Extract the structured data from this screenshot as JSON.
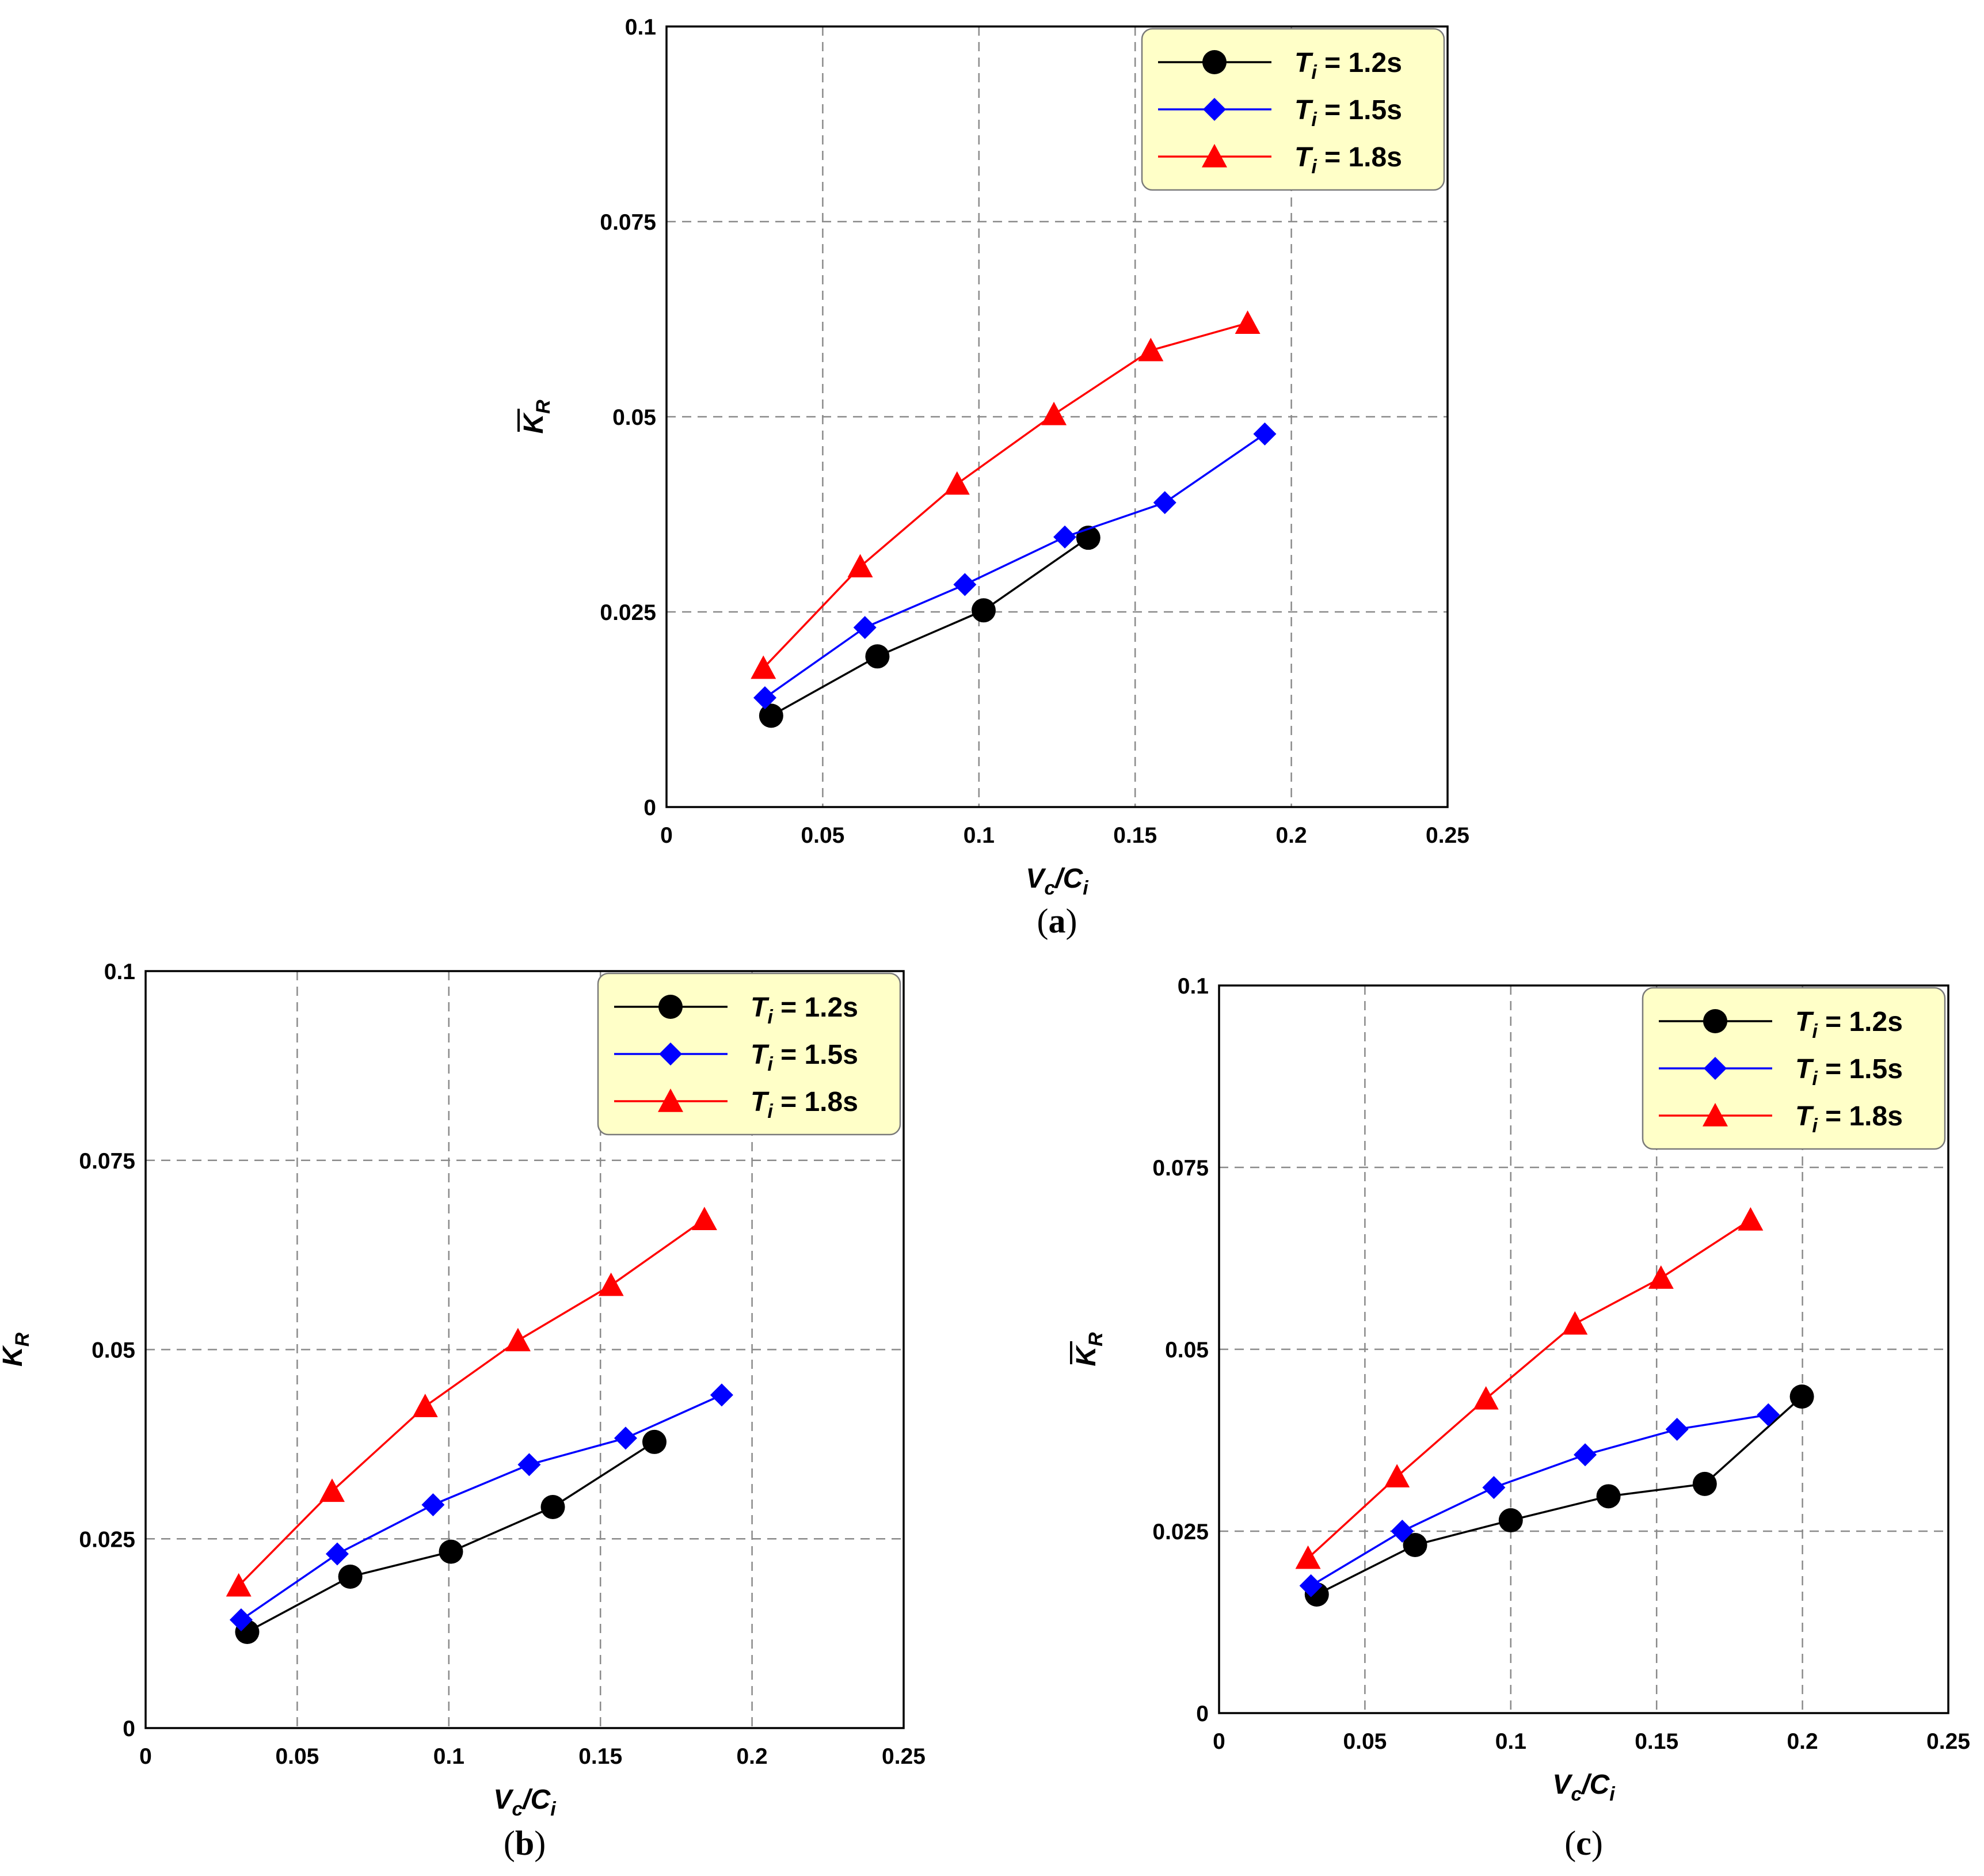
{
  "chart_data": [
    {
      "id": "a",
      "type": "line",
      "caption_letter": "a",
      "xlabel": "Vc/Ci",
      "xlabel_main": "V",
      "xlabel_sub1": "c",
      "xlabel_slash": "/C",
      "xlabel_sub2": "i",
      "ylabel": "K̄R",
      "ylabel_main": "K",
      "ylabel_sub": "R",
      "xlim": [
        0,
        0.25
      ],
      "ylim": [
        0,
        0.1
      ],
      "xticks": [
        0,
        0.05,
        0.1,
        0.15,
        0.2,
        0.25
      ],
      "xtick_labels": [
        "0",
        "0.05",
        "0.1",
        "0.15",
        "0.2",
        "0.25"
      ],
      "yticks": [
        0,
        0.025,
        0.05,
        0.075,
        0.1
      ],
      "ytick_labels": [
        "0",
        "0.025",
        "0.05",
        "0.075",
        "0.1"
      ],
      "grid": true,
      "legend_position": "top-right",
      "series": [
        {
          "name": "Ti = 1.2s",
          "label_T": "T",
          "label_sub": "i",
          "label_rest": " = 1.2s",
          "color": "#000000",
          "marker": "circle",
          "x": [
            0.0335,
            0.0675,
            0.1015,
            0.135
          ],
          "y": [
            0.0117,
            0.0193,
            0.0252,
            0.0345
          ]
        },
        {
          "name": "Ti = 1.5s",
          "label_T": "T",
          "label_sub": "i",
          "label_rest": " = 1.5s",
          "color": "#0000ff",
          "marker": "diamond",
          "x": [
            0.0315,
            0.0635,
            0.0955,
            0.1275,
            0.1595,
            0.1915
          ],
          "y": [
            0.014,
            0.023,
            0.0285,
            0.0346,
            0.039,
            0.0478
          ]
        },
        {
          "name": "Ti = 1.8s",
          "label_T": "T",
          "label_sub": "i",
          "label_rest": " = 1.8s",
          "color": "#ff0000",
          "marker": "triangle",
          "x": [
            0.031,
            0.062,
            0.093,
            0.124,
            0.155,
            0.186
          ],
          "y": [
            0.0178,
            0.0308,
            0.0414,
            0.0503,
            0.0585,
            0.062
          ]
        }
      ]
    },
    {
      "id": "b",
      "type": "line",
      "caption_letter": "b",
      "xlabel": "Vc/Ci",
      "xlabel_main": "V",
      "xlabel_sub1": "c",
      "xlabel_slash": "/C",
      "xlabel_sub2": "i",
      "ylabel": "K̄R",
      "ylabel_main": "K",
      "ylabel_sub": "R",
      "xlim": [
        0,
        0.25
      ],
      "ylim": [
        0,
        0.1
      ],
      "xticks": [
        0,
        0.05,
        0.1,
        0.15,
        0.2,
        0.25
      ],
      "xtick_labels": [
        "0",
        "0.05",
        "0.1",
        "0.15",
        "0.2",
        "0.25"
      ],
      "yticks": [
        0,
        0.025,
        0.05,
        0.075,
        0.1
      ],
      "ytick_labels": [
        "0",
        "0.025",
        "0.05",
        "0.075",
        "0.1"
      ],
      "grid": true,
      "legend_position": "top-right",
      "series": [
        {
          "name": "Ti = 1.2s",
          "label_T": "T",
          "label_sub": "i",
          "label_rest": " = 1.2s",
          "color": "#000000",
          "marker": "circle",
          "x": [
            0.0335,
            0.0675,
            0.1007,
            0.1343,
            0.1678
          ],
          "y": [
            0.0127,
            0.02,
            0.0233,
            0.0292,
            0.0378
          ]
        },
        {
          "name": "Ti = 1.5s",
          "label_T": "T",
          "label_sub": "i",
          "label_rest": " = 1.5s",
          "color": "#0000ff",
          "marker": "diamond",
          "x": [
            0.0315,
            0.0632,
            0.0948,
            0.1265,
            0.1583,
            0.19
          ],
          "y": [
            0.0143,
            0.023,
            0.0295,
            0.0348,
            0.0383,
            0.044
          ]
        },
        {
          "name": "Ti = 1.8s",
          "label_T": "T",
          "label_sub": "i",
          "label_rest": " = 1.8s",
          "color": "#ff0000",
          "marker": "triangle",
          "x": [
            0.0307,
            0.0615,
            0.0922,
            0.1228,
            0.1535,
            0.1843
          ],
          "y": [
            0.0188,
            0.0313,
            0.0425,
            0.0512,
            0.0585,
            0.0672
          ]
        }
      ]
    },
    {
      "id": "c",
      "type": "line",
      "caption_letter": "c",
      "xlabel": "Vc/Ci",
      "xlabel_main": "V",
      "xlabel_sub1": "c",
      "xlabel_slash": "/C",
      "xlabel_sub2": "i",
      "ylabel": "K̄R",
      "ylabel_main": "K",
      "ylabel_sub": "R",
      "xlim": [
        0,
        0.25
      ],
      "ylim": [
        0,
        0.1
      ],
      "xticks": [
        0,
        0.05,
        0.1,
        0.15,
        0.2,
        0.25
      ],
      "xtick_labels": [
        "0",
        "0.05",
        "0.1",
        "0.15",
        "0.2",
        "0.25"
      ],
      "yticks": [
        0,
        0.025,
        0.05,
        0.075,
        0.1
      ],
      "ytick_labels": [
        "0",
        "0.025",
        "0.05",
        "0.075",
        "0.1"
      ],
      "grid": true,
      "legend_position": "top-right",
      "series": [
        {
          "name": "Ti = 1.2s",
          "label_T": "T",
          "label_sub": "i",
          "label_rest": " = 1.2s",
          "color": "#000000",
          "marker": "circle",
          "x": [
            0.0335,
            0.0672,
            0.1,
            0.1335,
            0.1665,
            0.1998
          ],
          "y": [
            0.0163,
            0.0231,
            0.0265,
            0.0298,
            0.0315,
            0.0435
          ]
        },
        {
          "name": "Ti = 1.5s",
          "label_T": "T",
          "label_sub": "i",
          "label_rest": " = 1.5s",
          "color": "#0000ff",
          "marker": "diamond",
          "x": [
            0.0315,
            0.0628,
            0.0942,
            0.1255,
            0.157,
            0.1883
          ],
          "y": [
            0.0175,
            0.025,
            0.031,
            0.0355,
            0.039,
            0.041
          ]
        },
        {
          "name": "Ti = 1.8s",
          "label_T": "T",
          "label_sub": "i",
          "label_rest": " = 1.8s",
          "color": "#ff0000",
          "marker": "triangle",
          "x": [
            0.0305,
            0.061,
            0.0915,
            0.122,
            0.1515,
            0.1822
          ],
          "y": [
            0.0213,
            0.0325,
            0.0432,
            0.0535,
            0.0598,
            0.0678
          ]
        }
      ]
    }
  ]
}
